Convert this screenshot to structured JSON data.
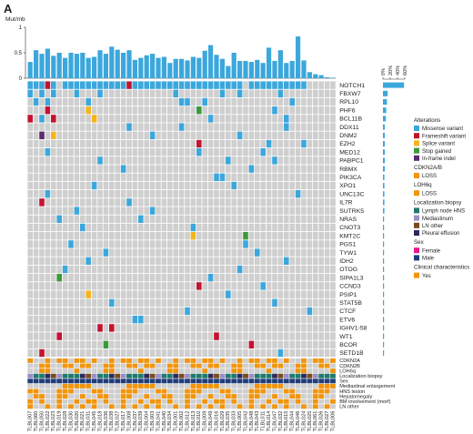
{
  "panel_label": "A",
  "colors": {
    "missense": "#3BA7DC",
    "frameshift": "#C4122F",
    "splice": "#F5B41B",
    "stop": "#3A9A3A",
    "inframe": "#5B2C6F",
    "loss": "#F0950E",
    "lymph": "#1F7A6D",
    "mediast": "#9B8EC4",
    "lnother": "#7A4A1E",
    "pleural": "#2B2B5E",
    "female": "#E8178A",
    "male": "#1F3D7A",
    "yes": "#F0950E",
    "empty": "#CFCFCF"
  },
  "chart_data": {
    "type": "heatmap",
    "tmb": {
      "label": "Mut/mb",
      "ticks": [
        "0",
        "0.5",
        "1"
      ],
      "ylim": [
        0,
        1
      ],
      "values": [
        0.32,
        0.55,
        0.48,
        0.58,
        0.44,
        0.5,
        0.4,
        0.5,
        0.48,
        0.5,
        0.4,
        0.42,
        0.55,
        0.48,
        0.62,
        0.56,
        0.5,
        0.55,
        0.36,
        0.4,
        0.45,
        0.48,
        0.4,
        0.42,
        0.3,
        0.38,
        0.38,
        0.35,
        0.42,
        0.4,
        0.54,
        0.65,
        0.46,
        0.38,
        0.24,
        0.5,
        0.34,
        0.34,
        0.32,
        0.36,
        0.3,
        0.6,
        0.34,
        0.55,
        0.3,
        0.34,
        0.82,
        0.35,
        0.12,
        0.08,
        0.06,
        0.02,
        0.01
      ]
    },
    "pct_axis": {
      "ticks": [
        "0%",
        "20%",
        "40%",
        "60%"
      ],
      "max": 60
    },
    "genes": [
      "NOTCH1",
      "FBXW7",
      "RPL10",
      "PHF6",
      "BCL11B",
      "DDX11",
      "DNM2",
      "EZH2",
      "MED12",
      "PABPC1",
      "RBMX",
      "PIK3CA",
      "XPO1",
      "UNC13C",
      "IL7R",
      "SUTRK5",
      "NRAS",
      "CNOT3",
      "KMT2C",
      "PGS1",
      "TYW1",
      "IDH2",
      "OTOG",
      "SIPA1L3",
      "CCND3",
      "PSIP1",
      "STAT5B",
      "CTCF",
      "ETV6",
      "IGHV1-58",
      "WT1",
      "BCOR",
      "SETD1B"
    ],
    "gene_pcts": [
      58,
      13,
      11,
      9,
      8,
      5,
      5,
      5,
      5,
      5,
      5,
      4,
      4,
      4,
      4,
      4,
      3,
      3,
      3,
      3,
      3,
      3,
      3,
      3,
      3,
      3,
      3,
      3,
      3,
      3,
      3,
      3,
      3
    ],
    "clinical_rows": [
      "CDKN2A",
      "CDKN2B",
      "LOH6q",
      "Localization biopsy",
      "Sex",
      "Mediastinal enlargement",
      "HNS lesion",
      "Hepatomegaly",
      "BM involvement (morf)",
      "LN other"
    ],
    "samples": [
      "TLBL007",
      "TLBL060",
      "TLBL050",
      "TLBL022",
      "TLBL023",
      "TLBL019",
      "TLBL028",
      "TLBL030",
      "TLBL020",
      "TLBL021",
      "TLBL031",
      "TLBL045",
      "TLBL018",
      "TLBL036",
      "TLBL038",
      "TLBL027",
      "TLBL017",
      "TLBL008",
      "TLBL037",
      "TLBL039",
      "TLBL004",
      "TLBL003",
      "TLBL041",
      "TLBL040",
      "TLBL034",
      "TLBL001",
      "TLBL002",
      "TLBL012",
      "TLBL013",
      "TLBL010",
      "TLBL009",
      "TLBL049",
      "TLBL016",
      "TLBL029",
      "TLBL035",
      "TLBL033",
      "TLBL005",
      "TLBL042",
      "TLBL048",
      "TLBL043",
      "TLBL011",
      "TLBL014",
      "TLBL047",
      "TLBL032",
      "TLBL015",
      "TLBL044",
      "TLBL046",
      "TLBL024",
      "TLBL025",
      "TLBL061",
      "TLBL026",
      "TLBL027",
      "TLBL006"
    ],
    "mutations": [
      [
        0,
        0,
        "M"
      ],
      [
        1,
        0,
        "M"
      ],
      [
        2,
        0,
        "M"
      ],
      [
        3,
        0,
        "F"
      ],
      [
        4,
        0,
        "M"
      ],
      [
        6,
        0,
        "M"
      ],
      [
        7,
        0,
        "M"
      ],
      [
        8,
        0,
        "M"
      ],
      [
        9,
        0,
        "M"
      ],
      [
        10,
        0,
        "M"
      ],
      [
        11,
        0,
        "M"
      ],
      [
        12,
        0,
        "M"
      ],
      [
        13,
        0,
        "M"
      ],
      [
        14,
        0,
        "M"
      ],
      [
        15,
        0,
        "M"
      ],
      [
        16,
        0,
        "M"
      ],
      [
        17,
        0,
        "F"
      ],
      [
        18,
        0,
        "M"
      ],
      [
        19,
        0,
        "M"
      ],
      [
        20,
        0,
        "M"
      ],
      [
        21,
        0,
        "M"
      ],
      [
        22,
        0,
        "M"
      ],
      [
        23,
        0,
        "M"
      ],
      [
        24,
        0,
        "M"
      ],
      [
        25,
        0,
        "M"
      ],
      [
        26,
        0,
        "M"
      ],
      [
        27,
        0,
        "M"
      ],
      [
        28,
        0,
        "M"
      ],
      [
        29,
        0,
        "M"
      ],
      [
        30,
        0,
        "M"
      ],
      [
        31,
        0,
        "M"
      ],
      [
        32,
        0,
        "M"
      ],
      [
        33,
        0,
        "M"
      ],
      [
        34,
        0,
        "M"
      ],
      [
        35,
        0,
        "M"
      ],
      [
        36,
        0,
        "M"
      ],
      [
        38,
        0,
        "M"
      ],
      [
        39,
        0,
        "M"
      ],
      [
        40,
        0,
        "M"
      ],
      [
        41,
        0,
        "M"
      ],
      [
        42,
        0,
        "M"
      ],
      [
        43,
        0,
        "M"
      ],
      [
        44,
        0,
        "M"
      ],
      [
        45,
        0,
        "M"
      ],
      [
        46,
        0,
        "M"
      ],
      [
        47,
        0,
        "M"
      ],
      [
        0,
        1,
        "M"
      ],
      [
        2,
        1,
        "M"
      ],
      [
        4,
        1,
        "M"
      ],
      [
        8,
        1,
        "M"
      ],
      [
        12,
        1,
        "M"
      ],
      [
        25,
        1,
        "M"
      ],
      [
        33,
        1,
        "M"
      ],
      [
        36,
        1,
        "M"
      ],
      [
        43,
        1,
        "M"
      ],
      [
        1,
        2,
        "M"
      ],
      [
        3,
        2,
        "M"
      ],
      [
        10,
        2,
        "M"
      ],
      [
        26,
        2,
        "M"
      ],
      [
        27,
        2,
        "M"
      ],
      [
        30,
        2,
        "M"
      ],
      [
        45,
        2,
        "M"
      ],
      [
        3,
        3,
        "F"
      ],
      [
        10,
        3,
        "S"
      ],
      [
        29,
        3,
        "G"
      ],
      [
        42,
        3,
        "M"
      ],
      [
        0,
        4,
        "F"
      ],
      [
        2,
        4,
        "M"
      ],
      [
        4,
        4,
        "F"
      ],
      [
        11,
        4,
        "S"
      ],
      [
        31,
        4,
        "M"
      ],
      [
        44,
        4,
        "M"
      ],
      [
        17,
        5,
        "M"
      ],
      [
        26,
        5,
        "M"
      ],
      [
        44,
        5,
        "M"
      ],
      [
        2,
        6,
        "P"
      ],
      [
        4,
        6,
        "S"
      ],
      [
        21,
        6,
        "M"
      ],
      [
        36,
        6,
        "M"
      ],
      [
        29,
        7,
        "F"
      ],
      [
        41,
        7,
        "M"
      ],
      [
        47,
        7,
        "M"
      ],
      [
        3,
        8,
        "M"
      ],
      [
        29,
        8,
        "M"
      ],
      [
        40,
        8,
        "M"
      ],
      [
        12,
        9,
        "M"
      ],
      [
        34,
        9,
        "M"
      ],
      [
        42,
        9,
        "M"
      ],
      [
        16,
        10,
        "M"
      ],
      [
        38,
        10,
        "M"
      ],
      [
        32,
        11,
        "M"
      ],
      [
        33,
        11,
        "M"
      ],
      [
        11,
        12,
        "M"
      ],
      [
        35,
        12,
        "M"
      ],
      [
        3,
        13,
        "M"
      ],
      [
        46,
        13,
        "M"
      ],
      [
        2,
        14,
        "F"
      ],
      [
        17,
        14,
        "M"
      ],
      [
        8,
        15,
        "M"
      ],
      [
        21,
        15,
        "M"
      ],
      [
        5,
        16,
        "M"
      ],
      [
        19,
        16,
        "M"
      ],
      [
        9,
        17,
        "M"
      ],
      [
        28,
        17,
        "M"
      ],
      [
        28,
        18,
        "S"
      ],
      [
        37,
        18,
        "G"
      ],
      [
        7,
        19,
        "M"
      ],
      [
        37,
        19,
        "M"
      ],
      [
        13,
        20,
        "M"
      ],
      [
        39,
        20,
        "M"
      ],
      [
        10,
        21,
        "M"
      ],
      [
        44,
        21,
        "M"
      ],
      [
        6,
        22,
        "M"
      ],
      [
        36,
        22,
        "M"
      ],
      [
        5,
        23,
        "G"
      ],
      [
        31,
        23,
        "M"
      ],
      [
        29,
        24,
        "F"
      ],
      [
        40,
        24,
        "M"
      ],
      [
        10,
        25,
        "S"
      ],
      [
        34,
        25,
        "M"
      ],
      [
        14,
        26,
        "M"
      ],
      [
        42,
        26,
        "M"
      ],
      [
        27,
        27,
        "M"
      ],
      [
        48,
        27,
        "M"
      ],
      [
        18,
        28,
        "M"
      ],
      [
        19,
        28,
        "M"
      ],
      [
        12,
        29,
        "F"
      ],
      [
        14,
        29,
        "F"
      ],
      [
        5,
        30,
        "F"
      ],
      [
        32,
        30,
        "F"
      ],
      [
        13,
        31,
        "G"
      ],
      [
        38,
        31,
        "F"
      ],
      [
        2,
        32,
        "F"
      ],
      [
        43,
        32,
        "M"
      ]
    ],
    "legend": {
      "alterations_title": "Alterations",
      "alterations": [
        {
          "code": "M",
          "label": "Missense variant",
          "color": "#3BA7DC"
        },
        {
          "code": "F",
          "label": "Frameshift variant",
          "color": "#C4122F"
        },
        {
          "code": "S",
          "label": "Splice variant",
          "color": "#F5B41B"
        },
        {
          "code": "G",
          "label": "Stop gained",
          "color": "#3A9A3A"
        },
        {
          "code": "P",
          "label": "In-frame indel",
          "color": "#5B2C6F"
        }
      ],
      "cdkn_title": "CDKN2A/B",
      "cdkn": [
        {
          "label": "LOSS",
          "color": "#F0950E"
        }
      ],
      "loh_title": "LOH6q",
      "loh": [
        {
          "label": "LOSS",
          "color": "#F0950E"
        }
      ],
      "loc_title": "Localization biopsy",
      "loc": [
        {
          "label": "Lymph node HNS",
          "color": "#1F7A6D"
        },
        {
          "label": "Mediastinum",
          "color": "#9B8EC4"
        },
        {
          "label": "LN other",
          "color": "#7A4A1E"
        },
        {
          "label": "Pleural effusion",
          "color": "#2B2B5E"
        }
      ],
      "sex_title": "Sex",
      "sex": [
        {
          "label": "Female",
          "color": "#E8178A"
        },
        {
          "label": "Male",
          "color": "#1F3D7A"
        }
      ],
      "clin_title": "Clinical characteristics",
      "clin": [
        {
          "label": "Yes",
          "color": "#F0950E"
        }
      ]
    }
  }
}
